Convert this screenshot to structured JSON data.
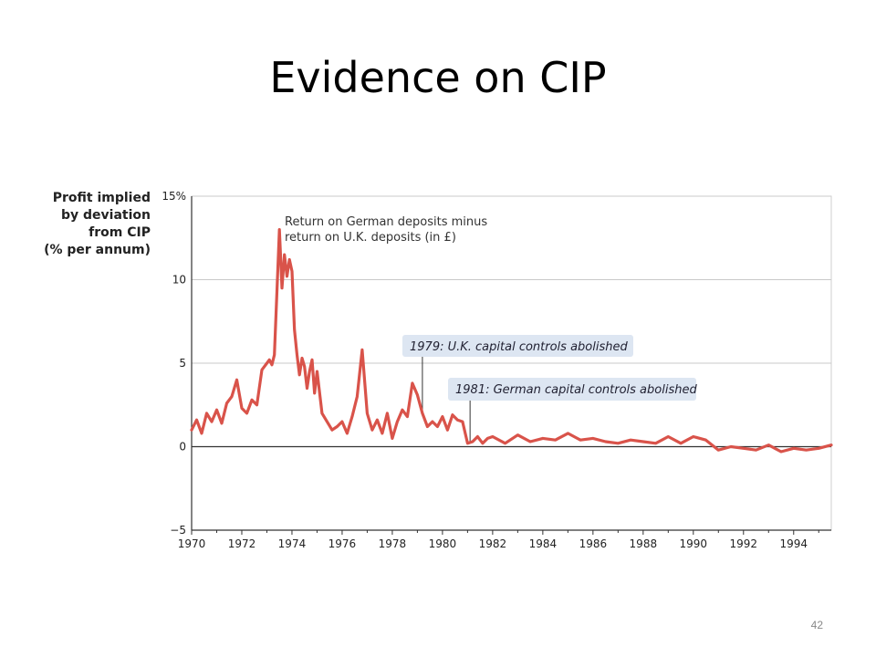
{
  "slide": {
    "title": "Evidence on CIP",
    "page_number": "42"
  },
  "chart_data": {
    "type": "line",
    "ylabel": "Profit implied\nby deviation\nfrom CIP\n(% per annum)",
    "xlim": [
      1970,
      1995.5
    ],
    "ylim": [
      -5,
      15
    ],
    "y_ticks": [
      15,
      10,
      5,
      0,
      -5
    ],
    "y_tick_labels": [
      "15%",
      "10",
      "5",
      "0",
      "−5"
    ],
    "x_ticks": [
      1970,
      1972,
      1974,
      1976,
      1978,
      1980,
      1982,
      1984,
      1986,
      1988,
      1990,
      1992,
      1994
    ],
    "x_tick_labels": [
      "1970",
      "1972",
      "1974",
      "1976",
      "1978",
      "1980",
      "1982",
      "1984",
      "1986",
      "1988",
      "1990",
      "1992",
      "1994"
    ],
    "grid": true,
    "line_color": "#d9534a",
    "series": [
      {
        "name": "Return on German deposits minus return on U.K. deposits (in £)",
        "x": [
          1970.0,
          1970.2,
          1970.4,
          1970.6,
          1970.8,
          1971.0,
          1971.2,
          1971.4,
          1971.6,
          1971.8,
          1972.0,
          1972.2,
          1972.4,
          1972.6,
          1972.8,
          1973.0,
          1973.1,
          1973.2,
          1973.3,
          1973.4,
          1973.5,
          1973.6,
          1973.7,
          1973.8,
          1973.9,
          1974.0,
          1974.1,
          1974.2,
          1974.3,
          1974.4,
          1974.5,
          1974.6,
          1974.7,
          1974.8,
          1974.9,
          1975.0,
          1975.2,
          1975.4,
          1975.6,
          1975.8,
          1976.0,
          1976.2,
          1976.4,
          1976.6,
          1976.8,
          1977.0,
          1977.2,
          1977.4,
          1977.6,
          1977.8,
          1978.0,
          1978.2,
          1978.4,
          1978.6,
          1978.8,
          1979.0,
          1979.2,
          1979.4,
          1979.6,
          1979.8,
          1980.0,
          1980.2,
          1980.4,
          1980.6,
          1980.8,
          1981.0,
          1981.2,
          1981.4,
          1981.6,
          1981.8,
          1982.0,
          1982.5,
          1983.0,
          1983.5,
          1984.0,
          1984.5,
          1985.0,
          1985.5,
          1986.0,
          1986.5,
          1987.0,
          1987.5,
          1988.0,
          1988.5,
          1989.0,
          1989.5,
          1990.0,
          1990.5,
          1991.0,
          1991.5,
          1992.0,
          1992.5,
          1993.0,
          1993.5,
          1994.0,
          1994.5,
          1995.0,
          1995.5
        ],
        "y": [
          1.0,
          1.6,
          0.8,
          2.0,
          1.5,
          2.2,
          1.4,
          2.6,
          3.0,
          4.0,
          2.3,
          2.0,
          2.8,
          2.5,
          4.6,
          5.0,
          5.2,
          4.9,
          5.5,
          9.3,
          13.0,
          9.5,
          11.5,
          10.2,
          11.2,
          10.5,
          7.0,
          5.5,
          4.3,
          5.3,
          4.8,
          3.5,
          4.5,
          5.2,
          3.2,
          4.5,
          2.0,
          1.5,
          1.0,
          1.2,
          1.5,
          0.8,
          1.8,
          3.0,
          5.8,
          2.0,
          1.0,
          1.6,
          0.8,
          2.0,
          0.5,
          1.5,
          2.2,
          1.8,
          3.8,
          3.1,
          2.0,
          1.2,
          1.5,
          1.2,
          1.8,
          1.0,
          1.9,
          1.6,
          1.5,
          0.2,
          0.3,
          0.6,
          0.2,
          0.5,
          0.6,
          0.2,
          0.7,
          0.3,
          0.5,
          0.4,
          0.8,
          0.4,
          0.5,
          0.3,
          0.2,
          0.4,
          0.3,
          0.2,
          0.6,
          0.2,
          0.6,
          0.4,
          -0.2,
          0.0,
          -0.1,
          -0.2,
          0.1,
          -0.3,
          -0.1,
          -0.2,
          -0.1,
          0.1
        ]
      }
    ],
    "annotations": [
      {
        "text": "Return on German deposits minus\nreturn on U.K. deposits (in £)"
      },
      {
        "text": "1979: U.K. capital controls abolished",
        "x": 1979.2
      },
      {
        "text": "1981: German capital controls abolished",
        "x": 1981.1
      }
    ]
  }
}
